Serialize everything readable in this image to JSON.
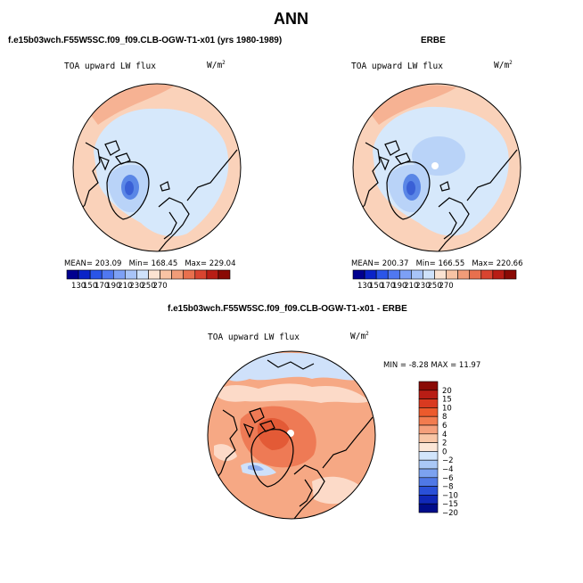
{
  "figure": {
    "title": "ANN",
    "colors": {
      "land_outline": "#000000",
      "background": "#ffffff"
    }
  },
  "panels": [
    {
      "id": "model",
      "title": "f.e15b03wch.F55W5SC.f09_f09.CLB-OGW-T1-x01 (yrs 1980-1989)",
      "variable": "TOA upward LW flux",
      "units_base": "W/m",
      "units_exp": "2",
      "stats": {
        "mean_label": "MEAN=",
        "mean": "203.09",
        "min_label": "Min=",
        "min": "168.45",
        "max_label": "Max=",
        "max": "229.04"
      }
    },
    {
      "id": "obs",
      "title": "ERBE",
      "variable": "TOA upward LW flux",
      "units_base": "W/m",
      "units_exp": "2",
      "stats": {
        "mean_label": "MEAN=",
        "mean": "200.37",
        "min_label": "Min=",
        "min": "166.55",
        "max_label": "Max=",
        "max": "220.66"
      }
    },
    {
      "id": "diff",
      "title": "f.e15b03wch.F55W5SC.f09_f09.CLB-OGW-T1-x01 - ERBE",
      "variable": "TOA upward LW flux",
      "units_base": "W/m",
      "units_exp": "2",
      "stats": {
        "minmax": "MIN =  -8.28 MAX =  11.97"
      }
    }
  ],
  "colorbars": {
    "absolute": {
      "tick_labels": [
        "130",
        "150",
        "170",
        "190",
        "210",
        "230",
        "250",
        "270"
      ],
      "colors": [
        "#00008f",
        "#0a23c8",
        "#2a55e8",
        "#5078f0",
        "#7da0f5",
        "#a8c4f8",
        "#cfe2fb",
        "#fbe3d2",
        "#f8c3a4",
        "#f09c78",
        "#e8704e",
        "#d94430",
        "#b81d15",
        "#8a0a05"
      ]
    },
    "difference": {
      "tick_labels": [
        "20",
        "15",
        "10",
        "8",
        "6",
        "4",
        "2",
        "0",
        "−2",
        "−4",
        "−6",
        "−8",
        "−10",
        "−15",
        "−20"
      ],
      "colors": [
        "#8a0a05",
        "#b81d15",
        "#d93a20",
        "#ec5a2c",
        "#f27c4f",
        "#f5a07c",
        "#f9c6a6",
        "#fce6d6",
        "#d2e5fb",
        "#aac8f6",
        "#7ca2f0",
        "#4f78e6",
        "#2a50d8",
        "#1028b8",
        "#000c8a"
      ]
    }
  },
  "map_colors": {
    "absolute": {
      "ocean": "#fad2ba",
      "outer": "#f6b293",
      "polar": "#d6e8fb",
      "inner": "#b9d3f8",
      "deep": "#5a86e6",
      "core": "#3a60d6"
    },
    "difference": {
      "base": "#f6a884",
      "warm": "#ee7a55",
      "hot": "#e35a36",
      "pale": "#fcdac8",
      "cool": "#cfe1fa",
      "cold": "#8eaef0"
    }
  }
}
